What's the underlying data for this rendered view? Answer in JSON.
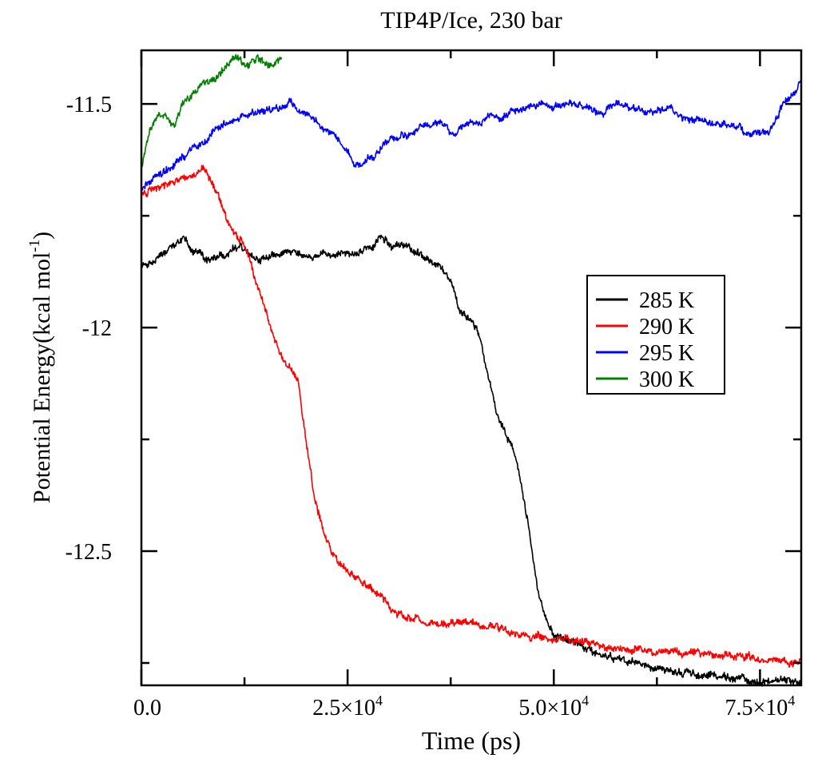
{
  "chart_data": {
    "type": "line",
    "title": "TIP4P/Ice, 230 bar",
    "xlabel": "Time (ps)",
    "ylabel_main": "Potential Energy(kcal mol",
    "ylabel_sup": "-1",
    "ylabel_close": ")",
    "xlim": [
      0,
      80000
    ],
    "ylim": [
      -12.8,
      -11.38
    ],
    "x_ticks": [
      {
        "value": 0,
        "label": "0.0",
        "mant": "0.0",
        "exp": ""
      },
      {
        "value": 25000,
        "label": "2.5×10^4",
        "mant": "2.5×10",
        "exp": "4"
      },
      {
        "value": 50000,
        "label": "5.0×10^4",
        "mant": "5.0×10",
        "exp": "4"
      },
      {
        "value": 75000,
        "label": "7.5×10^4",
        "mant": "7.5×10",
        "exp": "4"
      }
    ],
    "x_minor_ticks": [
      12500,
      37500,
      62500
    ],
    "y_ticks": [
      {
        "value": -11.5,
        "label": "-11.5"
      },
      {
        "value": -12.0,
        "label": "-12"
      },
      {
        "value": -12.5,
        "label": "-12.5"
      }
    ],
    "y_minor_ticks": [
      -11.75,
      -12.25,
      -12.75
    ],
    "legend_position": "right-middle",
    "series": [
      {
        "name": "285 K",
        "color": "#000000",
        "x": [
          0,
          2000,
          4000,
          5000,
          6000,
          8000,
          10000,
          12000,
          14000,
          16000,
          18000,
          20000,
          22000,
          24000,
          26000,
          28000,
          29000,
          30000,
          32000,
          34000,
          36000,
          37500,
          38500,
          40000,
          41000,
          42000,
          43000,
          44000,
          45000,
          46000,
          47000,
          48000,
          49000,
          50000,
          52000,
          55000,
          60000,
          65000,
          70000,
          75000,
          80000
        ],
        "y": [
          -11.86,
          -11.84,
          -11.82,
          -11.8,
          -11.83,
          -11.85,
          -11.84,
          -11.82,
          -11.85,
          -11.84,
          -11.83,
          -11.84,
          -11.83,
          -11.84,
          -11.84,
          -11.82,
          -11.8,
          -11.81,
          -11.82,
          -11.84,
          -11.86,
          -11.89,
          -11.96,
          -11.99,
          -12.02,
          -12.1,
          -12.18,
          -12.23,
          -12.27,
          -12.35,
          -12.45,
          -12.58,
          -12.65,
          -12.69,
          -12.7,
          -12.73,
          -12.75,
          -12.77,
          -12.78,
          -12.79,
          -12.79
        ]
      },
      {
        "name": "290 K",
        "color": "#ff0000",
        "x": [
          0,
          2000,
          4000,
          6000,
          7500,
          8000,
          9000,
          10000,
          11000,
          12000,
          13000,
          14000,
          15000,
          16000,
          17000,
          18000,
          19000,
          20000,
          21000,
          22000,
          23000,
          24000,
          25000,
          27000,
          29000,
          31000,
          33000,
          36000,
          40000,
          45000,
          50000,
          55000,
          60000,
          65000,
          70000,
          75000,
          80000
        ],
        "y": [
          -11.7,
          -11.69,
          -11.68,
          -11.66,
          -11.64,
          -11.66,
          -11.69,
          -11.74,
          -11.78,
          -11.8,
          -11.83,
          -11.9,
          -11.96,
          -12.02,
          -12.07,
          -12.09,
          -12.12,
          -12.25,
          -12.38,
          -12.45,
          -12.5,
          -12.53,
          -12.55,
          -12.57,
          -12.6,
          -12.64,
          -12.65,
          -12.66,
          -12.66,
          -12.68,
          -12.7,
          -12.71,
          -12.72,
          -12.73,
          -12.73,
          -12.74,
          -12.75
        ]
      },
      {
        "name": "295 K",
        "color": "#0000ff",
        "x": [
          0,
          2000,
          4000,
          6000,
          8000,
          10000,
          12000,
          14000,
          16000,
          18000,
          20000,
          22000,
          24000,
          26000,
          28000,
          30000,
          32000,
          34000,
          36000,
          38000,
          40000,
          42000,
          44000,
          46000,
          48000,
          50000,
          52000,
          54000,
          56000,
          58000,
          60000,
          62000,
          64000,
          66000,
          68000,
          70000,
          72000,
          74000,
          76000,
          78000,
          80000
        ],
        "y": [
          -11.69,
          -11.66,
          -11.64,
          -11.6,
          -11.58,
          -11.55,
          -11.53,
          -11.52,
          -11.51,
          -11.5,
          -11.52,
          -11.55,
          -11.58,
          -11.64,
          -11.62,
          -11.58,
          -11.57,
          -11.55,
          -11.54,
          -11.56,
          -11.54,
          -11.53,
          -11.52,
          -11.51,
          -11.5,
          -11.51,
          -11.5,
          -11.51,
          -11.52,
          -11.5,
          -11.51,
          -11.52,
          -11.51,
          -11.53,
          -11.54,
          -11.55,
          -11.55,
          -11.57,
          -11.56,
          -11.5,
          -11.45
        ]
      },
      {
        "name": "300 K",
        "color": "#008000",
        "x": [
          0,
          1000,
          2000,
          3000,
          4000,
          5000,
          6000,
          7000,
          8000,
          9000,
          10000,
          11000,
          12000,
          13000,
          14000,
          15000,
          16000,
          17000
        ],
        "y": [
          -11.64,
          -11.56,
          -11.52,
          -11.53,
          -11.55,
          -11.5,
          -11.48,
          -11.46,
          -11.45,
          -11.44,
          -11.42,
          -11.4,
          -11.41,
          -11.42,
          -11.4,
          -11.41,
          -11.42,
          -11.4
        ]
      }
    ]
  }
}
